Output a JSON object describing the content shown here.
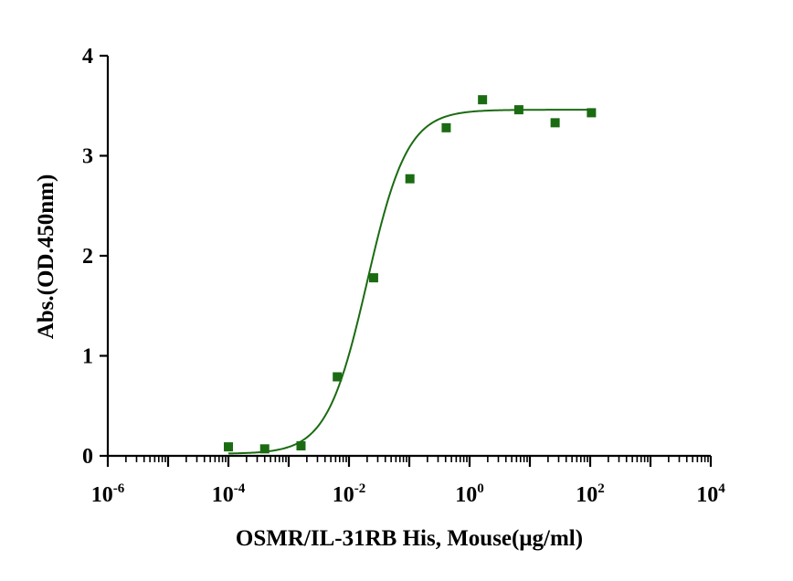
{
  "chart_data": {
    "type": "scatter",
    "xlabel": "OSMR/IL-31RB His, Mouse(μg/ml)",
    "ylabel": "Abs.(OD.450nm)",
    "x_scale": "log10",
    "xlim": [
      1e-06,
      10000
    ],
    "ylim": [
      0,
      4
    ],
    "x_ticks": [
      {
        "base": "10",
        "exp": "-6",
        "value": 1e-06
      },
      {
        "base": "10",
        "exp": "-4",
        "value": 0.0001
      },
      {
        "base": "10",
        "exp": "-2",
        "value": 0.01
      },
      {
        "base": "10",
        "exp": "0",
        "value": 1
      },
      {
        "base": "10",
        "exp": "2",
        "value": 100
      },
      {
        "base": "10",
        "exp": "4",
        "value": 10000
      }
    ],
    "y_ticks": [
      "0",
      "1",
      "2",
      "3",
      "4"
    ],
    "series": [
      {
        "color": "#1b6b12",
        "marker": "square",
        "x": [
          0.0001,
          0.0004,
          0.0016,
          0.0064,
          0.0256,
          0.1024,
          0.4096,
          1.6384,
          6.5536,
          26.2144,
          104.8576
        ],
        "y": [
          0.09,
          0.07,
          0.1,
          0.79,
          1.78,
          2.77,
          3.28,
          3.56,
          3.46,
          3.33,
          3.43
        ]
      }
    ],
    "fit": {
      "type": "4PL",
      "color": "#1b6b12",
      "bottom": 0.02,
      "top": 3.46,
      "ec50": 0.02,
      "hill": 1.3,
      "x_range": [
        0.0001,
        104.8576
      ]
    },
    "grid": false,
    "legend": false
  }
}
